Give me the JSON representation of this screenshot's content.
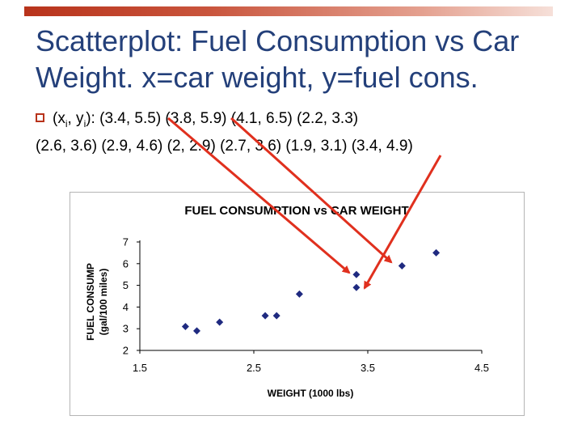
{
  "slide": {
    "title": "Scatterplot: Fuel Consumption vs Car Weight.  x=car weight, y=fuel cons.",
    "bullet_prefix": "(x",
    "bullet_sub_i": "i",
    "bullet_mid": ", y",
    "bullet_sub_i2": "i",
    "bullet_suffix": "): (3.4, 5.5) (3.8, 5.9) (4.1, 6.5) (2.2, 3.3)",
    "bullet_cont": "(2.6, 3.6) (2.9, 4.6) (2, 2.9) (2.7, 3.6) (1.9, 3.1) (3.4, 4.9)"
  },
  "colors": {
    "accent": "#b8331b",
    "title": "#24407a",
    "marker": "#1f2a80",
    "arrow": "#e0301e"
  },
  "chart_data": {
    "type": "scatter",
    "title": "FUEL CONSUMPTION vs CAR WEIGHT",
    "xlabel": "WEIGHT (1000 lbs)",
    "ylabel_line1": "FUEL CONSUMP",
    "ylabel_line2": "(gal/100 miles)",
    "xlim": [
      1.5,
      4.5
    ],
    "ylim": [
      2,
      7
    ],
    "xticks": [
      "1.5",
      "2.5",
      "3.5",
      "4.5"
    ],
    "yticks": [
      "2",
      "3",
      "4",
      "5",
      "6",
      "7"
    ],
    "points": [
      {
        "x": 3.4,
        "y": 5.5
      },
      {
        "x": 3.8,
        "y": 5.9
      },
      {
        "x": 4.1,
        "y": 6.5
      },
      {
        "x": 2.2,
        "y": 3.3
      },
      {
        "x": 2.6,
        "y": 3.6
      },
      {
        "x": 2.9,
        "y": 4.6
      },
      {
        "x": 2.0,
        "y": 2.9
      },
      {
        "x": 2.7,
        "y": 3.6
      },
      {
        "x": 1.9,
        "y": 3.1
      },
      {
        "x": 3.4,
        "y": 4.9
      }
    ],
    "marker": "diamond",
    "grid": false,
    "legend": "none"
  }
}
